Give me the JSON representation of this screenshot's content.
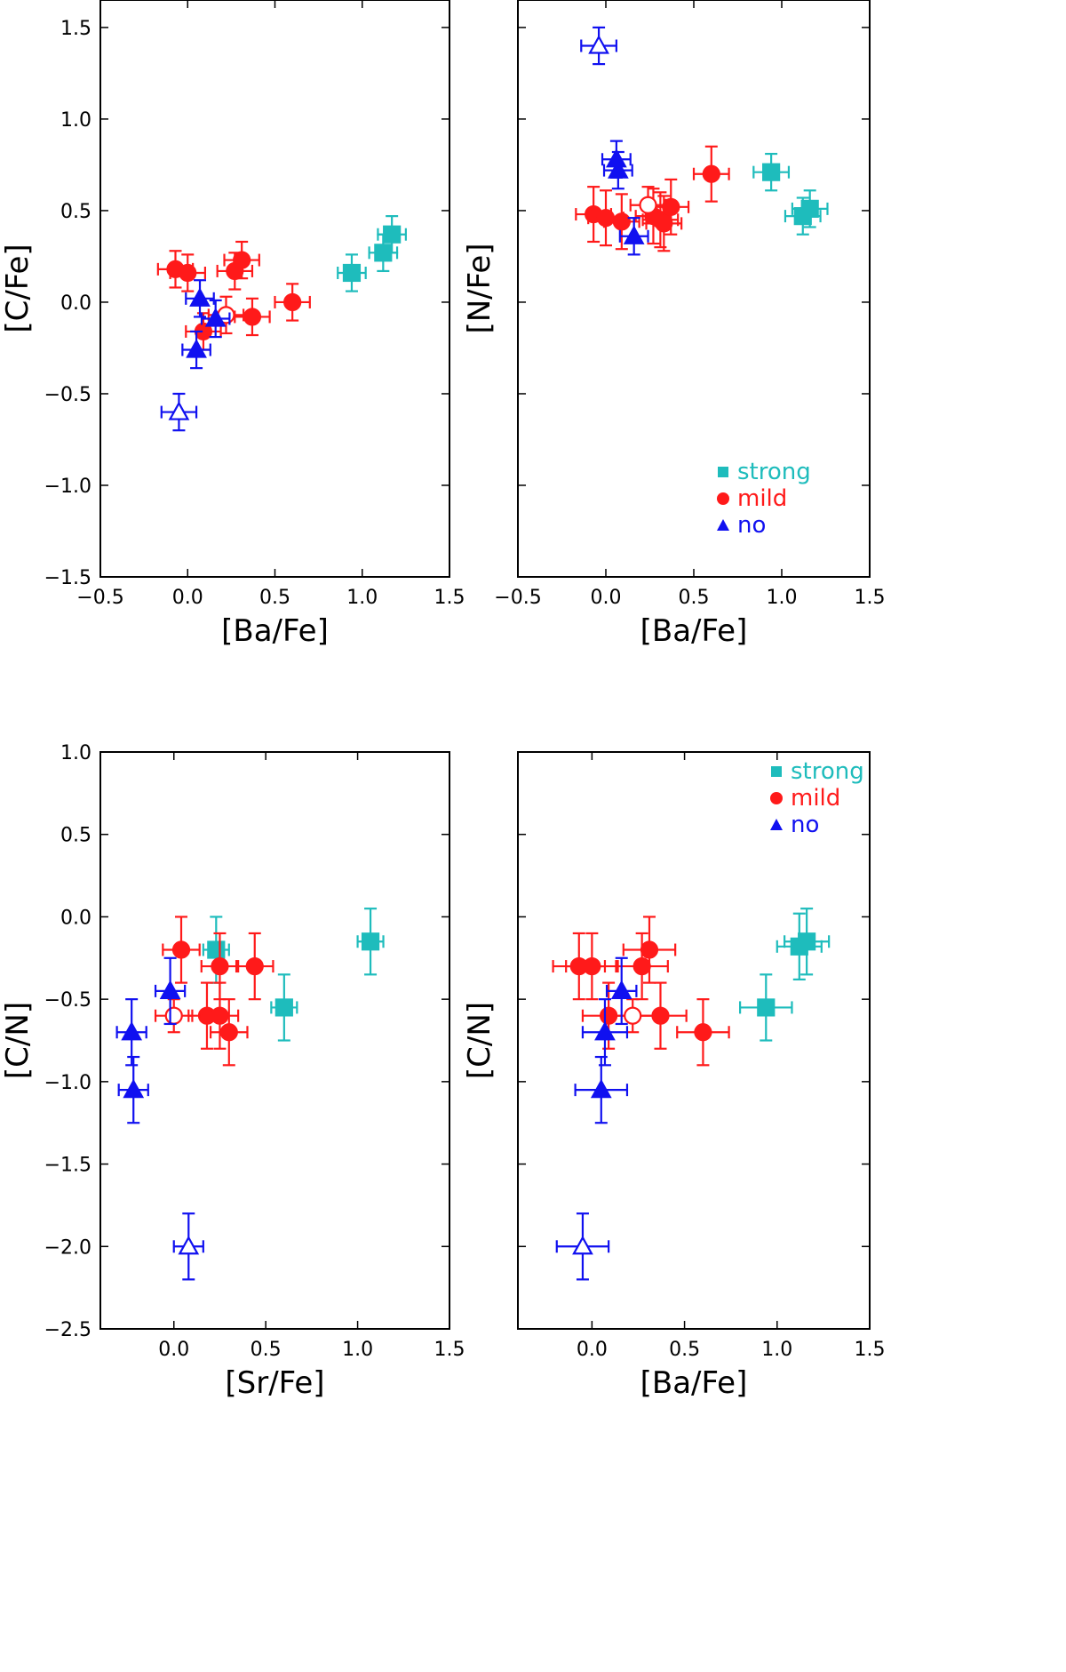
{
  "colors": {
    "strong": "#1ebcbc",
    "mild": "#ff1a1a",
    "no": "#1010f0",
    "frame": "#000000"
  },
  "chart_data": [
    {
      "type": "scatter",
      "id": "cfe-vs-bafe",
      "xlabel": "[Ba/Fe]",
      "ylabel": "[C/Fe]",
      "xlim": [
        -0.5,
        1.5
      ],
      "ylim": [
        -1.5,
        1.65
      ],
      "xticks": [
        -0.5,
        0.0,
        0.5,
        1.0,
        1.5
      ],
      "xtick_labels": [
        "−0.5",
        "0.0",
        "0.5",
        "1.0",
        "1.5"
      ],
      "yticks": [
        -1.5,
        -1.0,
        -0.5,
        0.0,
        0.5,
        1.0,
        1.5
      ],
      "ytick_labels": [
        "−1.5",
        "−1.0",
        "−0.5",
        "0.0",
        "0.5",
        "1.0",
        "1.5"
      ],
      "show_y_tick_labels": true,
      "legend": null,
      "series": [
        {
          "name": "strong",
          "marker": "square",
          "points": [
            {
              "x": 0.94,
              "y": 0.16,
              "xerr": 0.08,
              "yerr": 0.1,
              "filled": true
            },
            {
              "x": 1.12,
              "y": 0.27,
              "xerr": 0.08,
              "yerr": 0.1,
              "filled": true
            },
            {
              "x": 1.17,
              "y": 0.37,
              "xerr": 0.08,
              "yerr": 0.1,
              "filled": true
            }
          ]
        },
        {
          "name": "mild",
          "marker": "circle",
          "points": [
            {
              "x": -0.07,
              "y": 0.18,
              "xerr": 0.1,
              "yerr": 0.1,
              "filled": true
            },
            {
              "x": 0.0,
              "y": 0.16,
              "xerr": 0.1,
              "yerr": 0.1,
              "filled": true
            },
            {
              "x": 0.27,
              "y": 0.17,
              "xerr": 0.1,
              "yerr": 0.1,
              "filled": true
            },
            {
              "x": 0.31,
              "y": 0.23,
              "xerr": 0.1,
              "yerr": 0.1,
              "filled": true
            },
            {
              "x": 0.6,
              "y": 0.0,
              "xerr": 0.1,
              "yerr": 0.1,
              "filled": true
            },
            {
              "x": 0.37,
              "y": -0.08,
              "xerr": 0.1,
              "yerr": 0.1,
              "filled": true
            },
            {
              "x": 0.09,
              "y": -0.16,
              "xerr": 0.1,
              "yerr": 0.1,
              "filled": true
            },
            {
              "x": 0.22,
              "y": -0.07,
              "xerr": 0.1,
              "yerr": 0.1,
              "filled": false
            }
          ]
        },
        {
          "name": "no",
          "marker": "triangle",
          "points": [
            {
              "x": 0.07,
              "y": 0.02,
              "xerr": 0.08,
              "yerr": 0.1,
              "filled": true
            },
            {
              "x": 0.16,
              "y": -0.09,
              "xerr": 0.08,
              "yerr": 0.1,
              "filled": true
            },
            {
              "x": 0.05,
              "y": -0.26,
              "xerr": 0.08,
              "yerr": 0.1,
              "filled": true
            },
            {
              "x": -0.05,
              "y": -0.6,
              "xerr": 0.1,
              "yerr": 0.1,
              "filled": false
            }
          ]
        }
      ]
    },
    {
      "type": "scatter",
      "id": "nfe-vs-bafe",
      "xlabel": "[Ba/Fe]",
      "ylabel": "[N/Fe]",
      "xlim": [
        -0.5,
        1.5
      ],
      "ylim": [
        -1.5,
        1.65
      ],
      "xticks": [
        -0.5,
        0.0,
        0.5,
        1.0,
        1.5
      ],
      "xtick_labels": [
        "−0.5",
        "0.0",
        "0.5",
        "1.0",
        "1.5"
      ],
      "yticks": [
        -1.5,
        -1.0,
        -0.5,
        0.0,
        0.5,
        1.0,
        1.5
      ],
      "ytick_labels": [
        "−1.5",
        "−1.0",
        "−0.5",
        "0.0",
        "0.5",
        "1.0",
        "1.5"
      ],
      "show_y_tick_labels": false,
      "legend": {
        "location": "bottom-right",
        "entries": [
          "strong",
          "mild",
          "no"
        ]
      },
      "series": [
        {
          "name": "strong",
          "marker": "square",
          "points": [
            {
              "x": 0.94,
              "y": 0.71,
              "xerr": 0.1,
              "yerr": 0.1,
              "filled": true
            },
            {
              "x": 1.12,
              "y": 0.47,
              "xerr": 0.1,
              "yerr": 0.1,
              "filled": true
            },
            {
              "x": 1.16,
              "y": 0.51,
              "xerr": 0.1,
              "yerr": 0.1,
              "filled": true
            }
          ]
        },
        {
          "name": "mild",
          "marker": "circle",
          "points": [
            {
              "x": -0.07,
              "y": 0.48,
              "xerr": 0.1,
              "yerr": 0.15,
              "filled": true
            },
            {
              "x": 0.0,
              "y": 0.46,
              "xerr": 0.1,
              "yerr": 0.15,
              "filled": true
            },
            {
              "x": 0.09,
              "y": 0.44,
              "xerr": 0.1,
              "yerr": 0.15,
              "filled": true
            },
            {
              "x": 0.27,
              "y": 0.47,
              "xerr": 0.1,
              "yerr": 0.15,
              "filled": true
            },
            {
              "x": 0.31,
              "y": 0.45,
              "xerr": 0.1,
              "yerr": 0.15,
              "filled": true
            },
            {
              "x": 0.33,
              "y": 0.43,
              "xerr": 0.1,
              "yerr": 0.15,
              "filled": true
            },
            {
              "x": 0.37,
              "y": 0.52,
              "xerr": 0.1,
              "yerr": 0.15,
              "filled": true
            },
            {
              "x": 0.6,
              "y": 0.7,
              "xerr": 0.1,
              "yerr": 0.15,
              "filled": true
            },
            {
              "x": 0.24,
              "y": 0.53,
              "xerr": 0.1,
              "yerr": 0.1,
              "filled": false
            }
          ]
        },
        {
          "name": "no",
          "marker": "triangle",
          "points": [
            {
              "x": 0.06,
              "y": 0.78,
              "xerr": 0.08,
              "yerr": 0.1,
              "filled": true
            },
            {
              "x": 0.07,
              "y": 0.72,
              "xerr": 0.08,
              "yerr": 0.1,
              "filled": true
            },
            {
              "x": 0.16,
              "y": 0.36,
              "xerr": 0.08,
              "yerr": 0.1,
              "filled": true
            },
            {
              "x": -0.04,
              "y": 1.4,
              "xerr": 0.1,
              "yerr": 0.1,
              "filled": false
            }
          ]
        }
      ]
    },
    {
      "type": "scatter",
      "id": "cn-vs-srfe",
      "xlabel": "[Sr/Fe]",
      "ylabel": "[C/N]",
      "xlim": [
        -0.4,
        1.5
      ],
      "ylim": [
        -2.5,
        1.0
      ],
      "xticks": [
        0.0,
        0.5,
        1.0,
        1.5
      ],
      "xtick_labels": [
        "0.0",
        "0.5",
        "1.0",
        "1.5"
      ],
      "yticks": [
        -2.5,
        -2.0,
        -1.5,
        -1.0,
        -0.5,
        0.0,
        0.5,
        1.0
      ],
      "ytick_labels": [
        "−2.5",
        "−2.0",
        "−1.5",
        "−1.0",
        "−0.5",
        "0.0",
        "0.5",
        "1.0"
      ],
      "show_y_tick_labels": true,
      "legend": null,
      "series": [
        {
          "name": "strong",
          "marker": "square",
          "points": [
            {
              "x": 1.07,
              "y": -0.15,
              "xerr": 0.07,
              "yerr": 0.2,
              "filled": true
            },
            {
              "x": 0.6,
              "y": -0.55,
              "xerr": 0.07,
              "yerr": 0.2,
              "filled": true
            },
            {
              "x": 0.23,
              "y": -0.2,
              "xerr": 0.07,
              "yerr": 0.2,
              "filled": true
            }
          ]
        },
        {
          "name": "mild",
          "marker": "circle",
          "points": [
            {
              "x": 0.04,
              "y": -0.2,
              "xerr": 0.1,
              "yerr": 0.2,
              "filled": true
            },
            {
              "x": 0.25,
              "y": -0.3,
              "xerr": 0.1,
              "yerr": 0.2,
              "filled": true
            },
            {
              "x": 0.44,
              "y": -0.3,
              "xerr": 0.1,
              "yerr": 0.2,
              "filled": true
            },
            {
              "x": 0.18,
              "y": -0.6,
              "xerr": 0.1,
              "yerr": 0.2,
              "filled": true
            },
            {
              "x": 0.25,
              "y": -0.6,
              "xerr": 0.1,
              "yerr": 0.2,
              "filled": true
            },
            {
              "x": 0.3,
              "y": -0.7,
              "xerr": 0.1,
              "yerr": 0.2,
              "filled": true
            },
            {
              "x": 0.0,
              "y": -0.6,
              "xerr": 0.1,
              "yerr": 0.1,
              "filled": false
            }
          ]
        },
        {
          "name": "no",
          "marker": "triangle",
          "points": [
            {
              "x": -0.02,
              "y": -0.45,
              "xerr": 0.08,
              "yerr": 0.2,
              "filled": true
            },
            {
              "x": -0.23,
              "y": -0.7,
              "xerr": 0.08,
              "yerr": 0.2,
              "filled": true
            },
            {
              "x": -0.22,
              "y": -1.05,
              "xerr": 0.08,
              "yerr": 0.2,
              "filled": true
            },
            {
              "x": 0.08,
              "y": -2.0,
              "xerr": 0.08,
              "yerr": 0.2,
              "filled": false
            }
          ]
        }
      ]
    },
    {
      "type": "scatter",
      "id": "cn-vs-bafe",
      "xlabel": "[Ba/Fe]",
      "ylabel": "[C/N]",
      "xlim": [
        -0.4,
        1.5
      ],
      "ylim": [
        -2.5,
        1.0
      ],
      "xticks": [
        0.0,
        0.5,
        1.0,
        1.5
      ],
      "xtick_labels": [
        "0.0",
        "0.5",
        "1.0",
        "1.5"
      ],
      "yticks": [
        -2.5,
        -2.0,
        -1.5,
        -1.0,
        -0.5,
        0.0,
        0.5,
        1.0
      ],
      "ytick_labels": [
        "−2.5",
        "−2.0",
        "−1.5",
        "−1.0",
        "−0.5",
        "0.0",
        "0.5",
        "1.0"
      ],
      "show_y_tick_labels": false,
      "legend": {
        "location": "top-right",
        "entries": [
          "strong",
          "mild",
          "no"
        ]
      },
      "series": [
        {
          "name": "strong",
          "marker": "square",
          "points": [
            {
              "x": 1.12,
              "y": -0.18,
              "xerr": 0.12,
              "yerr": 0.2,
              "filled": true
            },
            {
              "x": 1.16,
              "y": -0.15,
              "xerr": 0.12,
              "yerr": 0.2,
              "filled": true
            },
            {
              "x": 0.94,
              "y": -0.55,
              "xerr": 0.14,
              "yerr": 0.2,
              "filled": true
            }
          ]
        },
        {
          "name": "mild",
          "marker": "circle",
          "points": [
            {
              "x": -0.07,
              "y": -0.3,
              "xerr": 0.14,
              "yerr": 0.2,
              "filled": true
            },
            {
              "x": 0.0,
              "y": -0.3,
              "xerr": 0.14,
              "yerr": 0.2,
              "filled": true
            },
            {
              "x": 0.27,
              "y": -0.3,
              "xerr": 0.14,
              "yerr": 0.2,
              "filled": true
            },
            {
              "x": 0.31,
              "y": -0.2,
              "xerr": 0.14,
              "yerr": 0.2,
              "filled": true
            },
            {
              "x": 0.09,
              "y": -0.6,
              "xerr": 0.14,
              "yerr": 0.2,
              "filled": true
            },
            {
              "x": 0.37,
              "y": -0.6,
              "xerr": 0.14,
              "yerr": 0.2,
              "filled": true
            },
            {
              "x": 0.6,
              "y": -0.7,
              "xerr": 0.14,
              "yerr": 0.2,
              "filled": true
            },
            {
              "x": 0.22,
              "y": -0.6,
              "xerr": 0.14,
              "yerr": 0.1,
              "filled": false
            }
          ]
        },
        {
          "name": "no",
          "marker": "triangle",
          "points": [
            {
              "x": 0.16,
              "y": -0.45,
              "xerr": 0.08,
              "yerr": 0.2,
              "filled": true
            },
            {
              "x": 0.07,
              "y": -0.7,
              "xerr": 0.12,
              "yerr": 0.2,
              "filled": true
            },
            {
              "x": 0.05,
              "y": -1.05,
              "xerr": 0.14,
              "yerr": 0.2,
              "filled": true
            },
            {
              "x": -0.05,
              "y": -2.0,
              "xerr": 0.14,
              "yerr": 0.2,
              "filled": false
            }
          ]
        }
      ]
    }
  ]
}
